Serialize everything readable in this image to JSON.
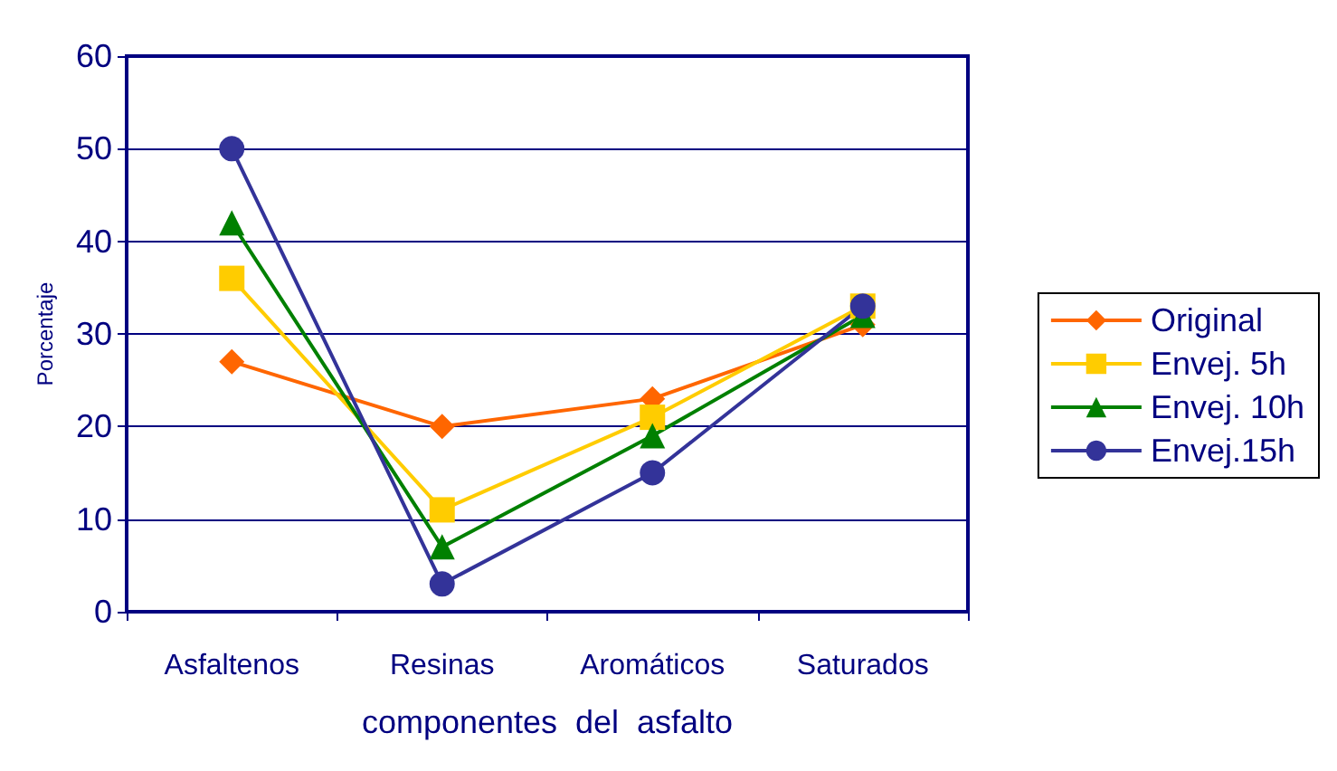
{
  "chart_data": {
    "type": "line",
    "xlabel": "componentes  del  asfalto",
    "ylabel": "Porcentaje",
    "categories": [
      "Asfaltenos",
      "Resinas",
      "Aromáticos",
      "Saturados"
    ],
    "series": [
      {
        "name": "Original",
        "color": "#ff6600",
        "marker": "diamond",
        "values": [
          27,
          20,
          23,
          31
        ]
      },
      {
        "name": "Envej. 5h",
        "color": "#ffcc00",
        "marker": "square",
        "values": [
          36,
          11,
          21,
          33
        ]
      },
      {
        "name": "Envej. 10h",
        "color": "#008000",
        "marker": "triangle",
        "values": [
          42,
          7,
          19,
          32
        ]
      },
      {
        "name": "Envej.15h",
        "color": "#333399",
        "marker": "circle",
        "values": [
          50,
          3,
          15,
          33
        ]
      }
    ],
    "ylim": [
      0,
      60
    ],
    "yticks": [
      0,
      10,
      20,
      30,
      40,
      50,
      60
    ],
    "grid": "y",
    "legend": "right",
    "line_style": "solid"
  }
}
